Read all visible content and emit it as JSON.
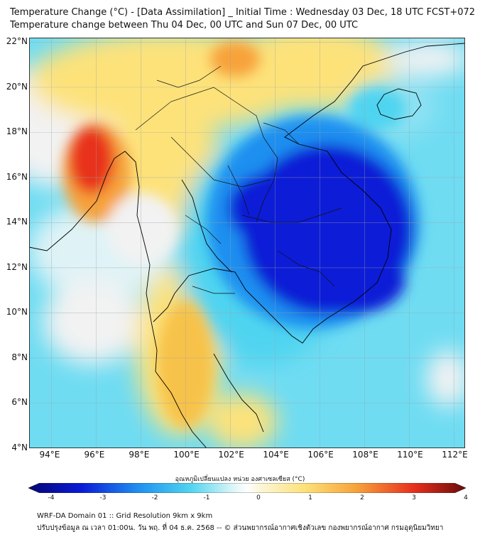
{
  "title_line1": "Temperature Change (°C) - [Data Assimilation] _ Initial Time : Wednesday 03 Dec, 18 UTC FCST+072",
  "title_line2": "Temperature change between Thu 04 Dec, 00 UTC and Sun 07 Dec, 00 UTC",
  "map": {
    "lon_range": [
      93,
      112.5
    ],
    "lat_range": [
      4,
      22.2
    ],
    "lon_ticks": [
      "94°E",
      "96°E",
      "98°E",
      "100°E",
      "102°E",
      "104°E",
      "106°E",
      "108°E",
      "110°E",
      "112°E"
    ],
    "lat_ticks": [
      "4°N",
      "6°N",
      "8°N",
      "10°N",
      "12°N",
      "14°N",
      "16°N",
      "18°N",
      "20°N",
      "22°N"
    ],
    "colors": {
      "neutral": "#f2f2f2",
      "warm_light": "#fde27a",
      "warm_mid": "#f7a23a",
      "warm_strong": "#e8301e",
      "cool_light": "#4fd4f0",
      "cool_mid": "#1f8ff0",
      "cool_strong": "#0a1ad6",
      "border": "#000000"
    }
  },
  "colorbar": {
    "label": "อุณหภูมิเปลี่ยนแปลง หน่วย องศาเซลเซียส (°C)",
    "ticks": [
      "-4",
      "-3",
      "-2",
      "-1",
      "0",
      "1",
      "2",
      "3",
      "4"
    ]
  },
  "footer_line1": "WRF-DA Domain 01 :: Grid Resolution 9km x 9km",
  "footer_line2": "ปรับปรุงข้อมูล ณ เวลา 01:00น. วัน พฤ. ที่ 04 ธ.ค. 2568 -- © ส่วนพยากรณ์อากาศเชิงตัวเลข กองพยากรณ์อากาศ กรมอุตุนิยมวิทยา"
}
